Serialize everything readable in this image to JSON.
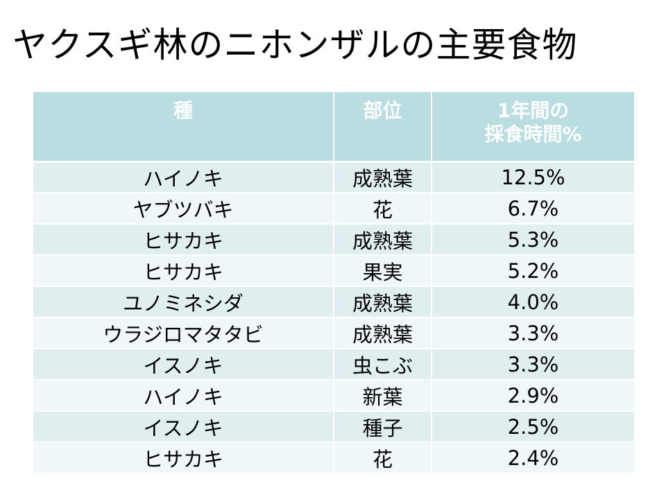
{
  "title": "ヤクスギ林のニホンザルの主要食物",
  "table": {
    "headers": {
      "species": "種",
      "part": "部位",
      "time_line1": "1年間の",
      "time_line2": "採食時間%"
    },
    "rows": [
      {
        "species": "ハイノキ",
        "part": "成熟葉",
        "percent": "12.5%"
      },
      {
        "species": "ヤブツバキ",
        "part": "花",
        "percent": "6.7%"
      },
      {
        "species": "ヒサカキ",
        "part": "成熟葉",
        "percent": "5.3%"
      },
      {
        "species": "ヒサカキ",
        "part": "果実",
        "percent": "5.2%"
      },
      {
        "species": "ユノミネシダ",
        "part": "成熟葉",
        "percent": "4.0%"
      },
      {
        "species": "ウラジロマタタビ",
        "part": "成熟葉",
        "percent": "3.3%"
      },
      {
        "species": "イスノキ",
        "part": "虫こぶ",
        "percent": "3.3%"
      },
      {
        "species": "ハイノキ",
        "part": "新葉",
        "percent": "2.9%"
      },
      {
        "species": "イスノキ",
        "part": "種子",
        "percent": "2.5%"
      },
      {
        "species": "ヒサカキ",
        "part": "花",
        "percent": "2.4%"
      }
    ]
  },
  "colors": {
    "header_bg": "#b9dde1",
    "row_odd_bg": "#e1eef0",
    "row_even_bg": "#f0f7f8"
  }
}
